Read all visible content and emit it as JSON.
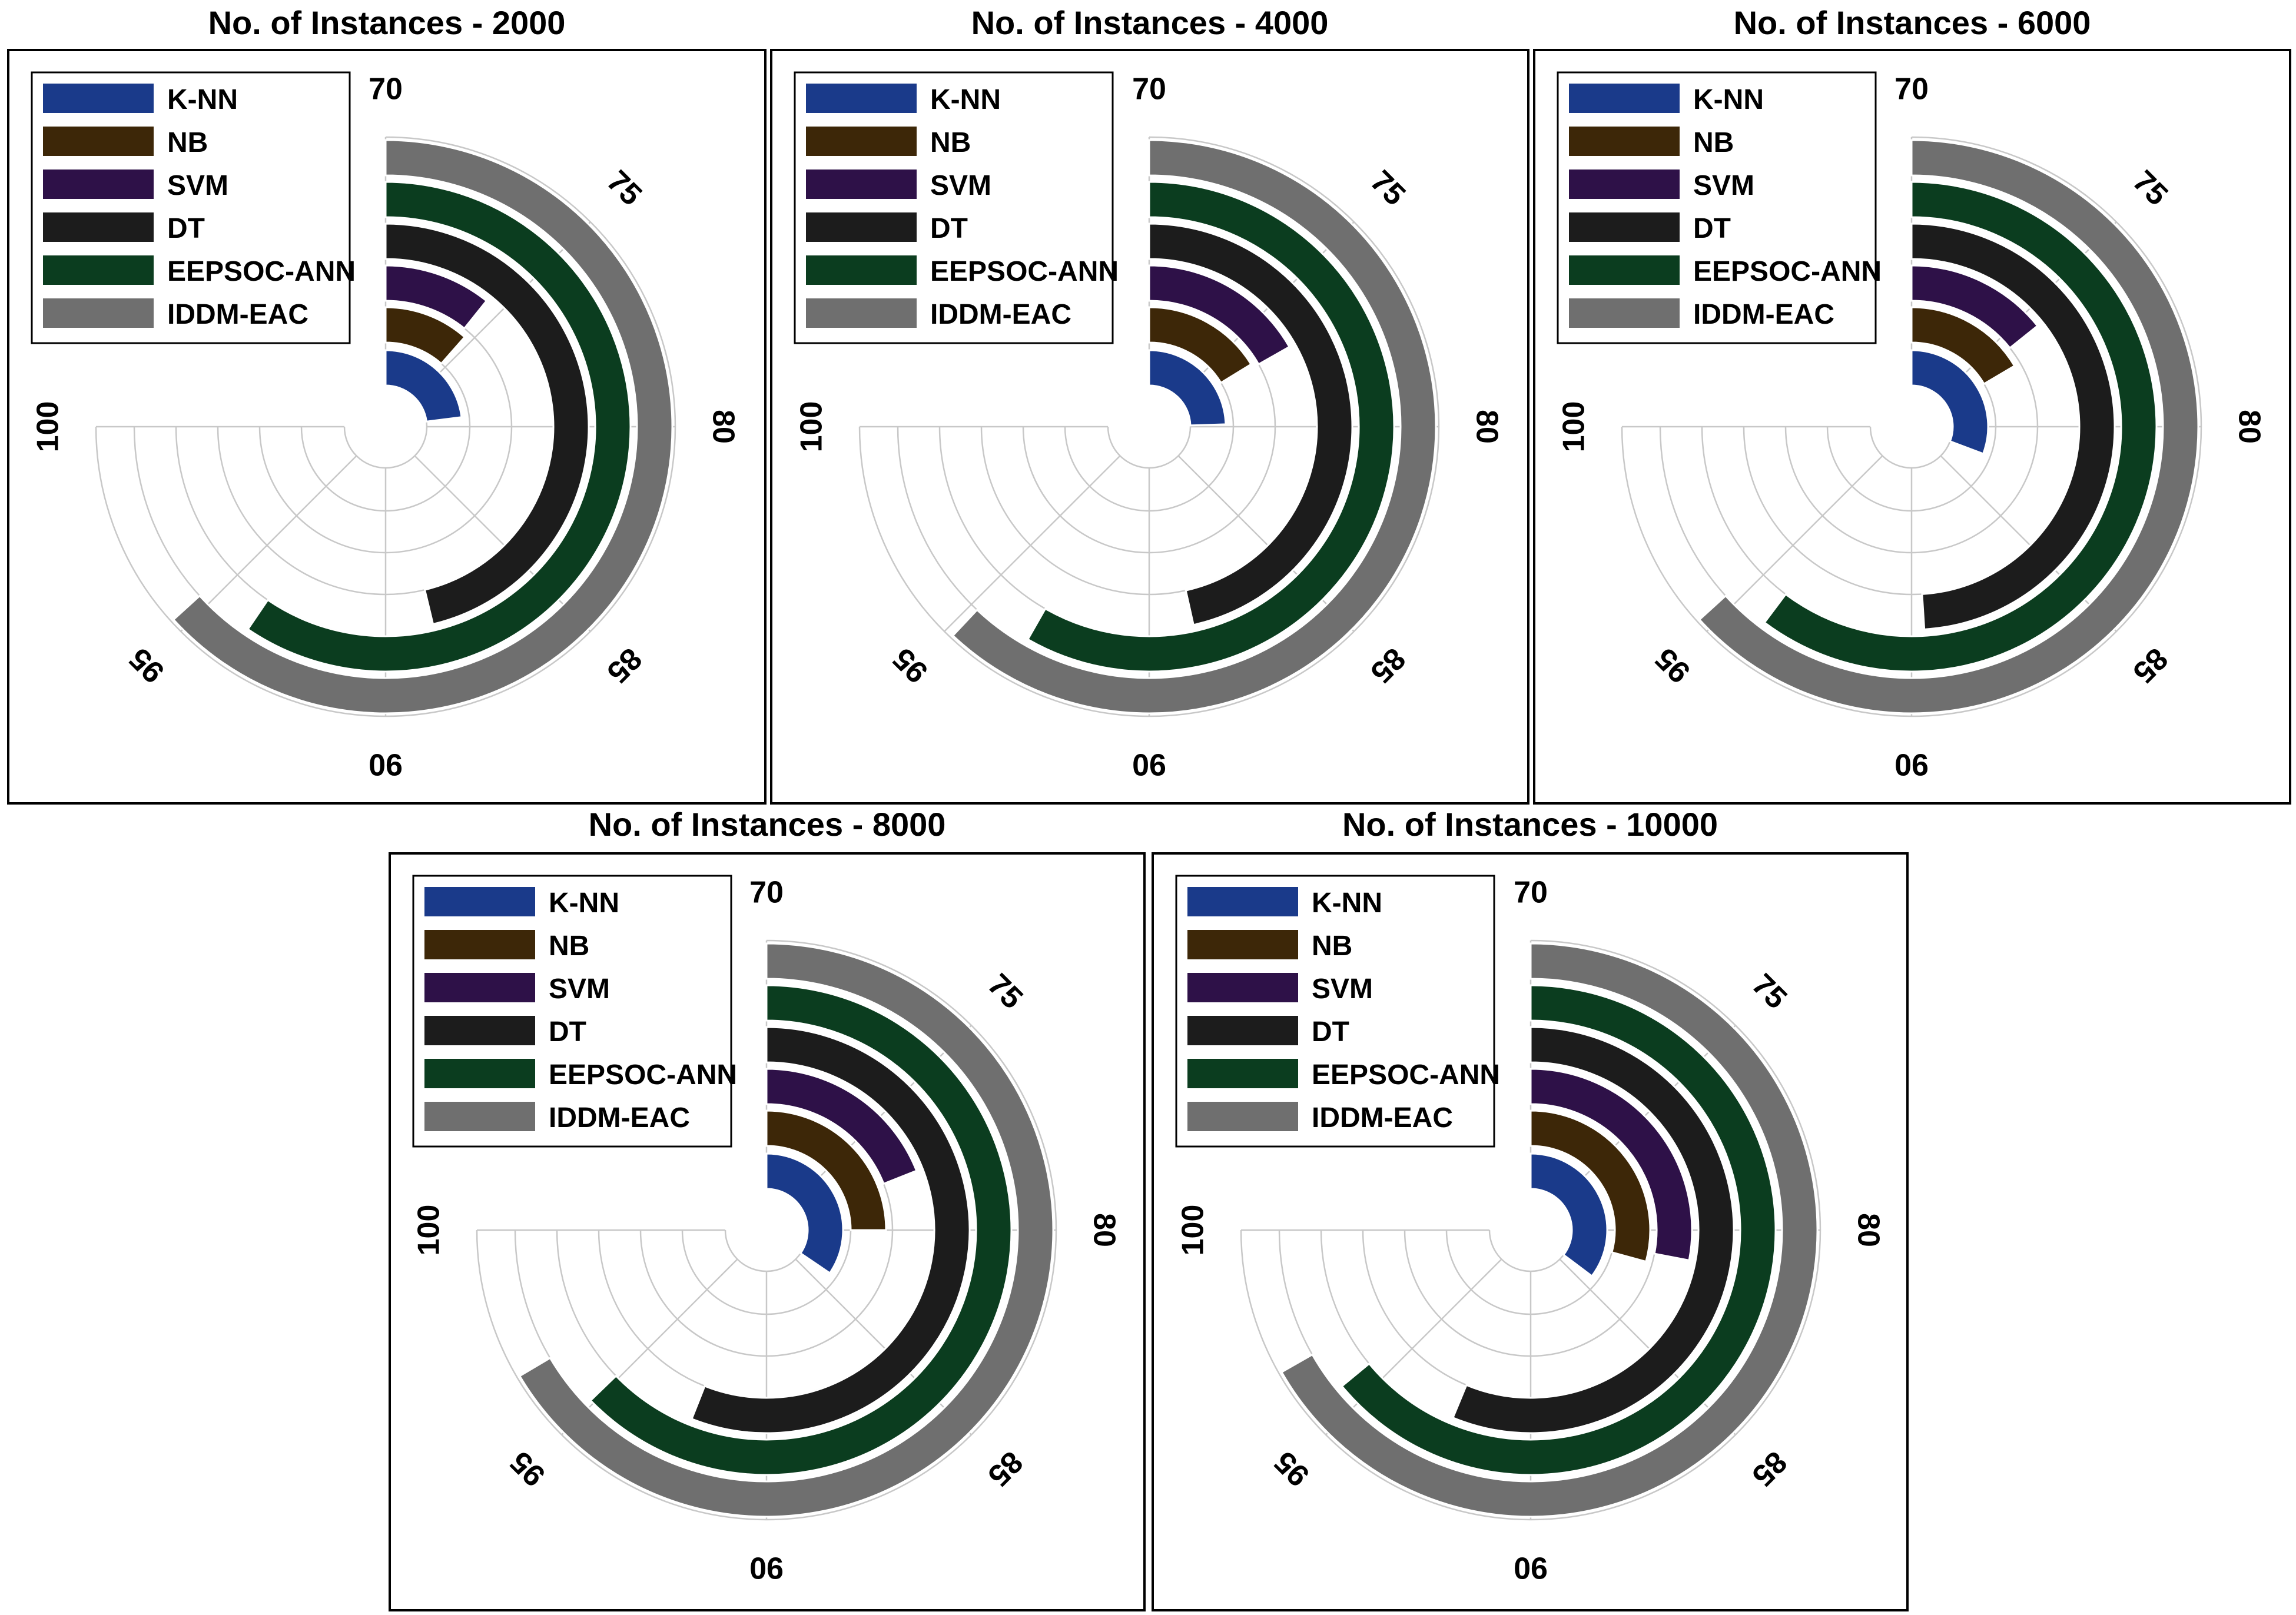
{
  "chart_data": [
    {
      "type": "radial-bar",
      "title": "No. of Instances - 2000",
      "axis": {
        "min": 70,
        "max": 100,
        "ticks": [
          70,
          75,
          80,
          85,
          90,
          95,
          100
        ]
      },
      "categories": [
        "K-NN",
        "NB",
        "SVM",
        "DT",
        "EEPSOC-ANN",
        "IDDM-EAC"
      ],
      "values": [
        79.2,
        74.6,
        74.3,
        88.5,
        93.8,
        95.3
      ],
      "legend": [
        "K-NN",
        "NB",
        "SVM",
        "DT",
        "EEPSOC-ANN",
        "IDDM-EAC"
      ]
    },
    {
      "type": "radial-bar",
      "title": "No. of Instances - 4000",
      "axis": {
        "min": 70,
        "max": 100,
        "ticks": [
          70,
          75,
          80,
          85,
          90,
          95,
          100
        ]
      },
      "categories": [
        "K-NN",
        "NB",
        "SVM",
        "DT",
        "EEPSOC-ANN",
        "IDDM-EAC"
      ],
      "values": [
        79.8,
        76.5,
        76.7,
        88.6,
        93.3,
        94.8
      ],
      "legend": [
        "K-NN",
        "NB",
        "SVM",
        "DT",
        "EEPSOC-ANN",
        "IDDM-EAC"
      ]
    },
    {
      "type": "radial-bar",
      "title": "No. of Instances - 6000",
      "axis": {
        "min": 70,
        "max": 100,
        "ticks": [
          70,
          75,
          80,
          85,
          90,
          95,
          100
        ]
      },
      "categories": [
        "K-NN",
        "NB",
        "SVM",
        "DT",
        "EEPSOC-ANN",
        "IDDM-EAC"
      ],
      "values": [
        82.3,
        76.6,
        75.7,
        89.6,
        94.1,
        95.3
      ],
      "legend": [
        "K-NN",
        "NB",
        "SVM",
        "DT",
        "EEPSOC-ANN",
        "IDDM-EAC"
      ]
    },
    {
      "type": "radial-bar",
      "title": "No. of Instances - 8000",
      "axis": {
        "min": 70,
        "max": 100,
        "ticks": [
          70,
          75,
          80,
          85,
          90,
          95,
          100
        ]
      },
      "categories": [
        "K-NN",
        "NB",
        "SVM",
        "DT",
        "EEPSOC-ANN",
        "IDDM-EAC"
      ],
      "values": [
        83.8,
        80.0,
        77.6,
        92.4,
        95.1,
        96.6
      ],
      "legend": [
        "K-NN",
        "NB",
        "SVM",
        "DT",
        "EEPSOC-ANN",
        "IDDM-EAC"
      ]
    },
    {
      "type": "radial-bar",
      "title": "No. of Instances - 10000",
      "axis": {
        "min": 70,
        "max": 100,
        "ticks": [
          70,
          75,
          80,
          85,
          90,
          95,
          100
        ]
      },
      "categories": [
        "K-NN",
        "NB",
        "SVM",
        "DT",
        "EEPSOC-ANN",
        "IDDM-EAC"
      ],
      "values": [
        84.1,
        81.7,
        81.2,
        92.5,
        95.6,
        96.7
      ],
      "legend": [
        "K-NN",
        "NB",
        "SVM",
        "DT",
        "EEPSOC-ANN",
        "IDDM-EAC"
      ]
    }
  ],
  "colors": {
    "K-NN": "#1a3a8a",
    "NB": "#3d2708",
    "SVM": "#2e1148",
    "DT": "#1c1c1c",
    "EEPSOC-ANN": "#0b3d1f",
    "IDDM-EAC": "#6f6f6f"
  }
}
